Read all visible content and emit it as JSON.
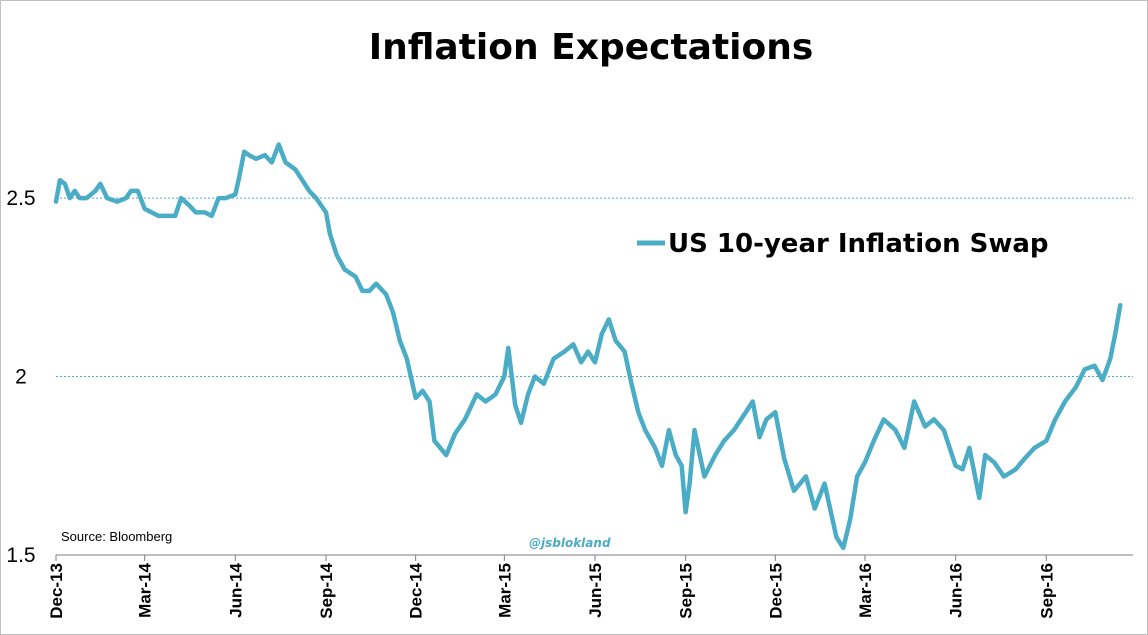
{
  "chart_data": {
    "type": "line",
    "title": "Inflation Expectations",
    "xlabel": "",
    "ylabel": "",
    "x_tick_labels": [
      "Dec-13",
      "Mar-14",
      "Jun-14",
      "Sep-14",
      "Dec-14",
      "Mar-15",
      "Jun-15",
      "Sep-15",
      "Dec-15",
      "Mar-16",
      "Jun-16",
      "Sep-16"
    ],
    "y_tick_labels": [
      "1.5",
      "2",
      "2.5"
    ],
    "ylim": [
      1.5,
      2.8
    ],
    "xlim": [
      "2013-12-01",
      "2016-11-28"
    ],
    "grid": "dotted horizontal lines at 2 and 2.5",
    "legend_position": "right",
    "series": [
      {
        "name": "US 10-year Inflation Swap",
        "color": "#4BACC6",
        "points": [
          [
            "2013-12-01",
            2.49
          ],
          [
            "2013-12-05",
            2.55
          ],
          [
            "2013-12-10",
            2.54
          ],
          [
            "2013-12-15",
            2.5
          ],
          [
            "2013-12-20",
            2.52
          ],
          [
            "2013-12-25",
            2.5
          ],
          [
            "2014-01-01",
            2.5
          ],
          [
            "2014-01-10",
            2.52
          ],
          [
            "2014-01-15",
            2.54
          ],
          [
            "2014-01-22",
            2.5
          ],
          [
            "2014-02-01",
            2.49
          ],
          [
            "2014-02-10",
            2.5
          ],
          [
            "2014-02-15",
            2.52
          ],
          [
            "2014-02-22",
            2.52
          ],
          [
            "2014-03-01",
            2.47
          ],
          [
            "2014-03-08",
            2.46
          ],
          [
            "2014-03-15",
            2.45
          ],
          [
            "2014-03-22",
            2.45
          ],
          [
            "2014-04-01",
            2.45
          ],
          [
            "2014-04-07",
            2.5
          ],
          [
            "2014-04-15",
            2.48
          ],
          [
            "2014-04-22",
            2.46
          ],
          [
            "2014-05-01",
            2.46
          ],
          [
            "2014-05-08",
            2.45
          ],
          [
            "2014-05-15",
            2.5
          ],
          [
            "2014-05-22",
            2.5
          ],
          [
            "2014-06-01",
            2.51
          ],
          [
            "2014-06-05",
            2.56
          ],
          [
            "2014-06-10",
            2.63
          ],
          [
            "2014-06-15",
            2.62
          ],
          [
            "2014-06-22",
            2.61
          ],
          [
            "2014-07-01",
            2.62
          ],
          [
            "2014-07-08",
            2.6
          ],
          [
            "2014-07-15",
            2.65
          ],
          [
            "2014-07-22",
            2.6
          ],
          [
            "2014-08-01",
            2.58
          ],
          [
            "2014-08-08",
            2.55
          ],
          [
            "2014-08-15",
            2.52
          ],
          [
            "2014-08-22",
            2.5
          ],
          [
            "2014-09-01",
            2.46
          ],
          [
            "2014-09-05",
            2.4
          ],
          [
            "2014-09-12",
            2.34
          ],
          [
            "2014-09-20",
            2.3
          ],
          [
            "2014-10-01",
            2.28
          ],
          [
            "2014-10-08",
            2.24
          ],
          [
            "2014-10-15",
            2.24
          ],
          [
            "2014-10-22",
            2.26
          ],
          [
            "2014-11-01",
            2.23
          ],
          [
            "2014-11-08",
            2.18
          ],
          [
            "2014-11-15",
            2.1
          ],
          [
            "2014-11-22",
            2.05
          ],
          [
            "2014-12-01",
            1.94
          ],
          [
            "2014-12-08",
            1.96
          ],
          [
            "2014-12-15",
            1.93
          ],
          [
            "2014-12-20",
            1.82
          ],
          [
            "2015-01-01",
            1.78
          ],
          [
            "2015-01-10",
            1.84
          ],
          [
            "2015-01-20",
            1.88
          ],
          [
            "2015-02-01",
            1.95
          ],
          [
            "2015-02-10",
            1.93
          ],
          [
            "2015-02-20",
            1.95
          ],
          [
            "2015-03-01",
            2.0
          ],
          [
            "2015-03-05",
            2.08
          ],
          [
            "2015-03-12",
            1.92
          ],
          [
            "2015-03-18",
            1.87
          ],
          [
            "2015-03-25",
            1.95
          ],
          [
            "2015-04-01",
            2.0
          ],
          [
            "2015-04-10",
            1.98
          ],
          [
            "2015-04-20",
            2.05
          ],
          [
            "2015-05-01",
            2.07
          ],
          [
            "2015-05-10",
            2.09
          ],
          [
            "2015-05-18",
            2.04
          ],
          [
            "2015-05-25",
            2.07
          ],
          [
            "2015-06-01",
            2.04
          ],
          [
            "2015-06-08",
            2.12
          ],
          [
            "2015-06-15",
            2.16
          ],
          [
            "2015-06-22",
            2.1
          ],
          [
            "2015-07-01",
            2.07
          ],
          [
            "2015-07-08",
            1.98
          ],
          [
            "2015-07-15",
            1.9
          ],
          [
            "2015-07-22",
            1.85
          ],
          [
            "2015-08-01",
            1.8
          ],
          [
            "2015-08-08",
            1.75
          ],
          [
            "2015-08-15",
            1.85
          ],
          [
            "2015-08-22",
            1.78
          ],
          [
            "2015-08-28",
            1.75
          ],
          [
            "2015-09-01",
            1.62
          ],
          [
            "2015-09-05",
            1.7
          ],
          [
            "2015-09-10",
            1.85
          ],
          [
            "2015-09-20",
            1.72
          ],
          [
            "2015-10-01",
            1.78
          ],
          [
            "2015-10-10",
            1.82
          ],
          [
            "2015-10-20",
            1.85
          ],
          [
            "2015-11-01",
            1.9
          ],
          [
            "2015-11-08",
            1.93
          ],
          [
            "2015-11-15",
            1.83
          ],
          [
            "2015-11-22",
            1.88
          ],
          [
            "2015-12-01",
            1.9
          ],
          [
            "2015-12-10",
            1.77
          ],
          [
            "2015-12-20",
            1.68
          ],
          [
            "2016-01-01",
            1.72
          ],
          [
            "2016-01-10",
            1.63
          ],
          [
            "2016-01-20",
            1.7
          ],
          [
            "2016-02-01",
            1.55
          ],
          [
            "2016-02-08",
            1.52
          ],
          [
            "2016-02-15",
            1.6
          ],
          [
            "2016-02-22",
            1.72
          ],
          [
            "2016-03-01",
            1.76
          ],
          [
            "2016-03-10",
            1.82
          ],
          [
            "2016-03-20",
            1.88
          ],
          [
            "2016-04-01",
            1.85
          ],
          [
            "2016-04-10",
            1.8
          ],
          [
            "2016-04-20",
            1.93
          ],
          [
            "2016-05-01",
            1.86
          ],
          [
            "2016-05-10",
            1.88
          ],
          [
            "2016-05-20",
            1.85
          ],
          [
            "2016-06-01",
            1.75
          ],
          [
            "2016-06-08",
            1.74
          ],
          [
            "2016-06-15",
            1.8
          ],
          [
            "2016-06-25",
            1.66
          ],
          [
            "2016-07-01",
            1.78
          ],
          [
            "2016-07-10",
            1.76
          ],
          [
            "2016-07-20",
            1.72
          ],
          [
            "2016-08-01",
            1.74
          ],
          [
            "2016-08-10",
            1.77
          ],
          [
            "2016-08-20",
            1.8
          ],
          [
            "2016-09-01",
            1.82
          ],
          [
            "2016-09-10",
            1.88
          ],
          [
            "2016-09-20",
            1.93
          ],
          [
            "2016-10-01",
            1.97
          ],
          [
            "2016-10-10",
            2.02
          ],
          [
            "2016-10-20",
            2.03
          ],
          [
            "2016-10-28",
            1.99
          ],
          [
            "2016-11-05",
            2.05
          ],
          [
            "2016-11-10",
            2.12
          ],
          [
            "2016-11-15",
            2.2
          ]
        ]
      }
    ],
    "source_note": "Source: Bloomberg",
    "watermark": "@jsblokland"
  }
}
